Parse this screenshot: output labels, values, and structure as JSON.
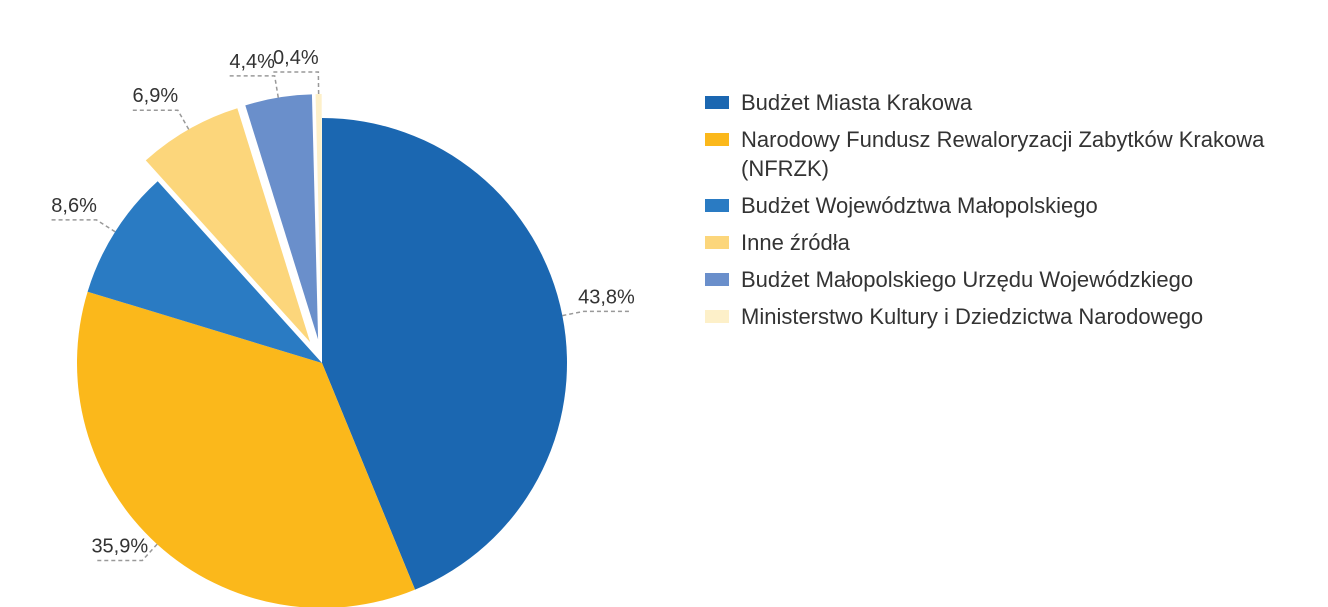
{
  "chart_data": {
    "type": "pie",
    "categories": [
      "Budżet Miasta Krakowa",
      "Narodowy Fundusz Rewaloryzacji Zabytków Krakowa (NFRZK)",
      "Budżet Województwa Małopolskiego",
      "Inne źródła",
      "Budżet Małopolskiego Urzędu Wojewódzkiego",
      "Ministerstwo Kultury i Dziedzictwa Narodowego"
    ],
    "values": [
      43.8,
      35.9,
      8.6,
      6.9,
      4.4,
      0.4
    ],
    "value_labels": [
      "43,8%",
      "35,9%",
      "8,6%",
      "6,9%",
      "4,4%",
      "0,4%"
    ],
    "colors": [
      "#1b67b1",
      "#fbb81b",
      "#2a7bc3",
      "#fcd67b",
      "#6a8fcb",
      "#fdf0c9"
    ],
    "legend": "right"
  }
}
